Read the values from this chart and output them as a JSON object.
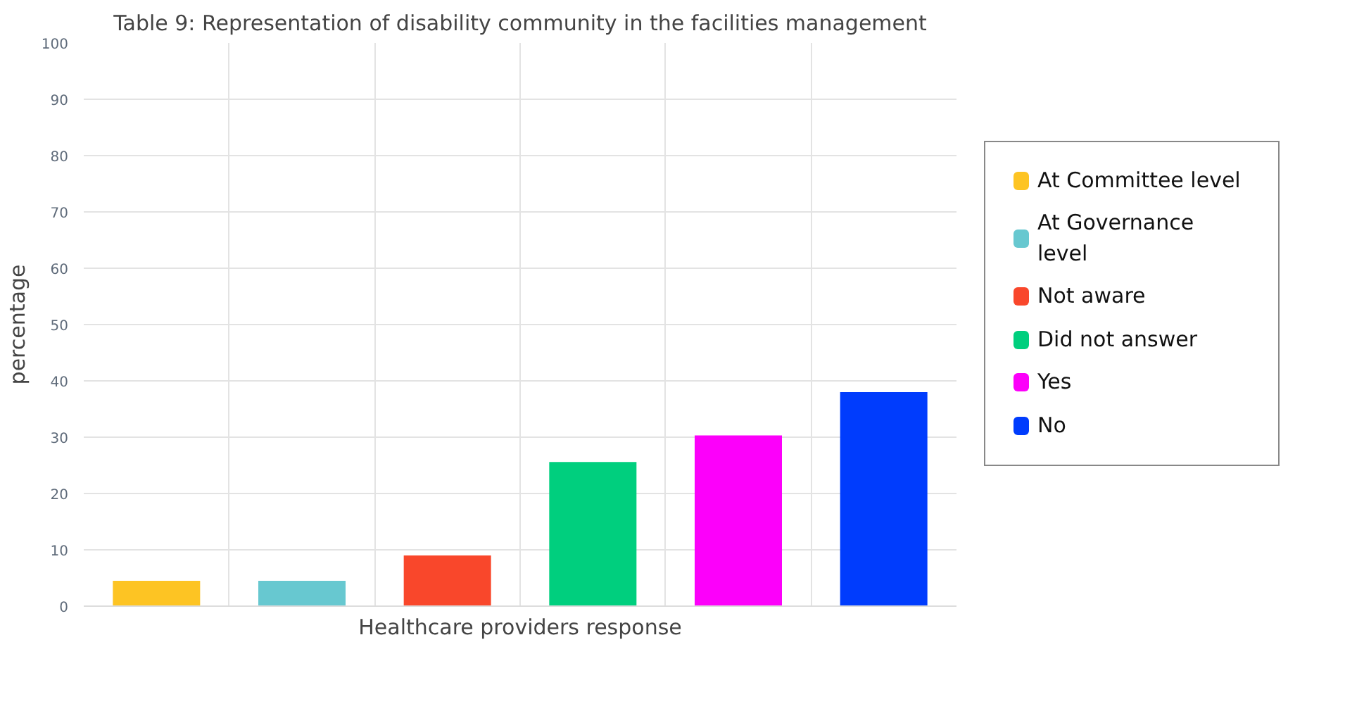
{
  "chart_data": {
    "type": "bar",
    "title": "Table 9: Representation of disability community in the facilities management",
    "xlabel": "Healthcare providers response",
    "ylabel": "percentage",
    "categories": [
      null,
      null,
      null,
      null,
      null,
      null
    ],
    "series": [
      {
        "name": "At Committee level",
        "color": "#fdc423",
        "values": [
          4.5,
          null,
          null,
          null,
          null,
          null
        ]
      },
      {
        "name": "At Governance level",
        "color": "#67c8d0",
        "values": [
          null,
          4.5,
          null,
          null,
          null,
          null
        ]
      },
      {
        "name": "Not aware",
        "color": "#f9472b",
        "values": [
          null,
          null,
          9,
          null,
          null,
          null
        ]
      },
      {
        "name": "Did not answer",
        "color": "#00cf7e",
        "values": [
          null,
          null,
          null,
          25.6,
          null,
          null
        ]
      },
      {
        "name": "Yes",
        "color": "#fc00fa",
        "values": [
          null,
          null,
          null,
          null,
          30.3,
          null
        ]
      },
      {
        "name": "No",
        "color": "#003cfd",
        "values": [
          null,
          null,
          null,
          null,
          null,
          38
        ]
      }
    ],
    "ylim": [
      0,
      100
    ],
    "yticks": [
      0,
      10,
      20,
      30,
      40,
      50,
      60,
      70,
      80,
      90,
      100
    ],
    "grid": true,
    "legend": "right"
  }
}
